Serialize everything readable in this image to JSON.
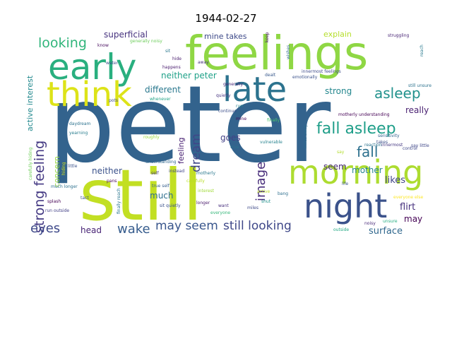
{
  "chart_data": {
    "type": "wordcloud",
    "title": "1944-02-27",
    "xlabel": "",
    "ylabel": "",
    "words": [
      {
        "text": "peter",
        "weight": 100,
        "color": "#33638d"
      },
      {
        "text": "still",
        "weight": 88,
        "color": "#c2df23"
      },
      {
        "text": "feelings",
        "weight": 58,
        "color": "#8fd744"
      },
      {
        "text": "early",
        "weight": 44,
        "color": "#29af7f"
      },
      {
        "text": "think",
        "weight": 42,
        "color": "#dde318"
      },
      {
        "text": "late",
        "weight": 42,
        "color": "#2c738e"
      },
      {
        "text": "morning",
        "weight": 40,
        "color": "#addc30"
      },
      {
        "text": "night",
        "weight": 40,
        "color": "#3b528b"
      },
      {
        "text": "fall asleep",
        "weight": 22,
        "color": "#1f9e89"
      },
      {
        "text": "asleep",
        "weight": 20,
        "color": "#21918c"
      },
      {
        "text": "looking",
        "weight": 19,
        "color": "#31b57b"
      },
      {
        "text": "strong feeling",
        "weight": 19,
        "color": "#443983"
      },
      {
        "text": "fall",
        "weight": 18,
        "color": "#2d708e"
      },
      {
        "text": "eyes",
        "weight": 17,
        "color": "#3e4989"
      },
      {
        "text": "image",
        "weight": 16,
        "color": "#472c7a"
      },
      {
        "text": "dream",
        "weight": 16,
        "color": "#404688"
      },
      {
        "text": "wake",
        "weight": 16,
        "color": "#365c8d"
      },
      {
        "text": "may seem",
        "weight": 16,
        "color": "#39568c"
      },
      {
        "text": "still looking",
        "weight": 16,
        "color": "#3f4889"
      },
      {
        "text": "surface",
        "weight": 13,
        "color": "#31688e"
      },
      {
        "text": "mother",
        "weight": 12,
        "color": "#25858e"
      },
      {
        "text": "seem",
        "weight": 12,
        "color": "#482878"
      },
      {
        "text": "likes",
        "weight": 12,
        "color": "#414487"
      },
      {
        "text": "flirt",
        "weight": 12,
        "color": "#46307e"
      },
      {
        "text": "neither peter",
        "weight": 11,
        "color": "#1fa188"
      },
      {
        "text": "different",
        "weight": 11,
        "color": "#2a788e"
      },
      {
        "text": "neither",
        "weight": 11,
        "color": "#3b528b"
      },
      {
        "text": "much",
        "weight": 11,
        "color": "#2e6e8e"
      },
      {
        "text": "head",
        "weight": 11,
        "color": "#482475"
      },
      {
        "text": "may",
        "weight": 11,
        "color": "#440154"
      },
      {
        "text": "strong",
        "weight": 11,
        "color": "#24878e"
      },
      {
        "text": "really",
        "weight": 11,
        "color": "#481f70"
      },
      {
        "text": "superficial",
        "weight": 11,
        "color": "#46327e"
      },
      {
        "text": "explain",
        "weight": 11,
        "color": "#b5de2b"
      },
      {
        "text": "mine takes",
        "weight": 10,
        "color": "#3e4a89"
      },
      {
        "text": "goes",
        "weight": 10,
        "color": "#424086"
      },
      {
        "text": "concern",
        "weight": 9,
        "color": "#95d840"
      },
      {
        "text": "active interest",
        "weight": 9,
        "color": "#23898e"
      },
      {
        "text": "feeling",
        "weight": 9,
        "color": "#482173"
      },
      {
        "text": "struggling",
        "weight": 5,
        "color": "#482475"
      },
      {
        "text": "innermost feelings",
        "weight": 5,
        "color": "#3e4c8a"
      },
      {
        "text": "still unsure",
        "weight": 5,
        "color": "#2c728e"
      },
      {
        "text": "motherly understanding",
        "weight": 5,
        "color": "#440154"
      },
      {
        "text": "sensitivity",
        "weight": 5,
        "color": "#33638d"
      },
      {
        "text": "daydream",
        "weight": 5,
        "color": "#2c728e"
      },
      {
        "text": "yearning",
        "weight": 5,
        "color": "#287c8e"
      },
      {
        "text": "understanding",
        "weight": 5,
        "color": "#31688e"
      },
      {
        "text": "carefully",
        "weight": 5,
        "color": "#b8de29"
      },
      {
        "text": "motherly",
        "weight": 5,
        "color": "#2a788e"
      },
      {
        "text": "true self",
        "weight": 5,
        "color": "#355f8d"
      },
      {
        "text": "sit quietly",
        "weight": 5,
        "color": "#3b528b"
      },
      {
        "text": "much longer",
        "weight": 5,
        "color": "#2d708e"
      },
      {
        "text": "run outside",
        "weight": 5,
        "color": "#424086"
      },
      {
        "text": "carefully hiding",
        "weight": 5,
        "color": "#6ece58"
      },
      {
        "text": "finally reach",
        "weight": 5,
        "color": "#2a768e"
      },
      {
        "text": "emotionally",
        "weight": 5,
        "color": "#3b528b"
      },
      {
        "text": "vulnerable",
        "weight": 5,
        "color": "#26828e"
      },
      {
        "text": "everyone",
        "weight": 5,
        "color": "#35b779"
      },
      {
        "text": "miles away",
        "weight": 5,
        "color": "#2f6c8e"
      },
      {
        "text": "say little",
        "weight": 5,
        "color": "#3f4788"
      },
      {
        "text": "generally",
        "weight": 5,
        "color": "#482677"
      },
      {
        "text": "quietly",
        "weight": 5,
        "color": "#46337f"
      },
      {
        "text": "whenever",
        "weight": 5,
        "color": "#20a386"
      },
      {
        "text": "continue",
        "weight": 5,
        "color": "#3c4f8a"
      },
      {
        "text": "instead",
        "weight": 5,
        "color": "#404588"
      },
      {
        "text": "interest",
        "weight": 5,
        "color": "#a0da39"
      },
      {
        "text": "reaction",
        "weight": 5,
        "color": "#2c728e"
      },
      {
        "text": "innermost",
        "weight": 5,
        "color": "#453882"
      },
      {
        "text": "everyone else",
        "weight": 5,
        "color": "#fde725"
      },
      {
        "text": "outside",
        "weight": 5,
        "color": "#22a884"
      },
      {
        "text": "noisy",
        "weight": 5,
        "color": "#482979"
      },
      {
        "text": "unsure",
        "weight": 5,
        "color": "#26ad81"
      },
      {
        "text": "control",
        "weight": 5,
        "color": "#3f4889"
      },
      {
        "text": "happens",
        "weight": 5,
        "color": "#481b6d"
      },
      {
        "text": "roughly",
        "weight": 5,
        "color": "#9bd93c"
      },
      {
        "text": "generally noisy",
        "weight": 5,
        "color": "#6ccd5a"
      },
      {
        "text": "know",
        "weight": 5,
        "color": "#460a5d"
      },
      {
        "text": "water",
        "weight": 5,
        "color": "#3d4d8a"
      },
      {
        "text": "hide",
        "weight": 5,
        "color": "#481c6e"
      },
      {
        "text": "sit",
        "weight": 5,
        "color": "#2a788e"
      },
      {
        "text": "away",
        "weight": 5,
        "color": "#46327e"
      },
      {
        "text": "dealt",
        "weight": 5,
        "color": "#38588c"
      },
      {
        "text": "wishes",
        "weight": 5,
        "color": "#2f6b8e"
      },
      {
        "text": "keep",
        "weight": 5,
        "color": "#471365"
      },
      {
        "text": "reach",
        "weight": 5,
        "color": "#297a8e"
      },
      {
        "text": "pots",
        "weight": 5,
        "color": "#3d4e8a"
      },
      {
        "text": "finally",
        "weight": 5,
        "color": "#4ac16d"
      },
      {
        "text": "true",
        "weight": 5,
        "color": "#2c738e"
      },
      {
        "text": "takes",
        "weight": 5,
        "color": "#3c4f8a"
      },
      {
        "text": "life",
        "weight": 5,
        "color": "#3a548c"
      },
      {
        "text": "bang",
        "weight": 5,
        "color": "#2e6f8e"
      },
      {
        "text": "shut",
        "weight": 5,
        "color": "#21918c"
      },
      {
        "text": "active",
        "weight": 5,
        "color": "#bddf26"
      },
      {
        "text": "miles",
        "weight": 5,
        "color": "#3e4a89"
      },
      {
        "text": "want",
        "weight": 5,
        "color": "#472f7d"
      },
      {
        "text": "longer",
        "weight": 5,
        "color": "#48186a"
      },
      {
        "text": "self",
        "weight": 5,
        "color": "#453781"
      },
      {
        "text": "pans",
        "weight": 5,
        "color": "#440154"
      },
      {
        "text": "tact",
        "weight": 5,
        "color": "#3a548c"
      },
      {
        "text": "splash",
        "weight": 5,
        "color": "#440154"
      },
      {
        "text": "hiding",
        "weight": 5,
        "color": "#d2e21b"
      },
      {
        "text": "little",
        "weight": 5,
        "color": "#3b528b"
      },
      {
        "text": "run",
        "weight": 5,
        "color": "#26828e"
      },
      {
        "text": "mine",
        "weight": 5,
        "color": "#440154"
      },
      {
        "text": "say",
        "weight": 5,
        "color": "#b2dd2d"
      }
    ]
  }
}
